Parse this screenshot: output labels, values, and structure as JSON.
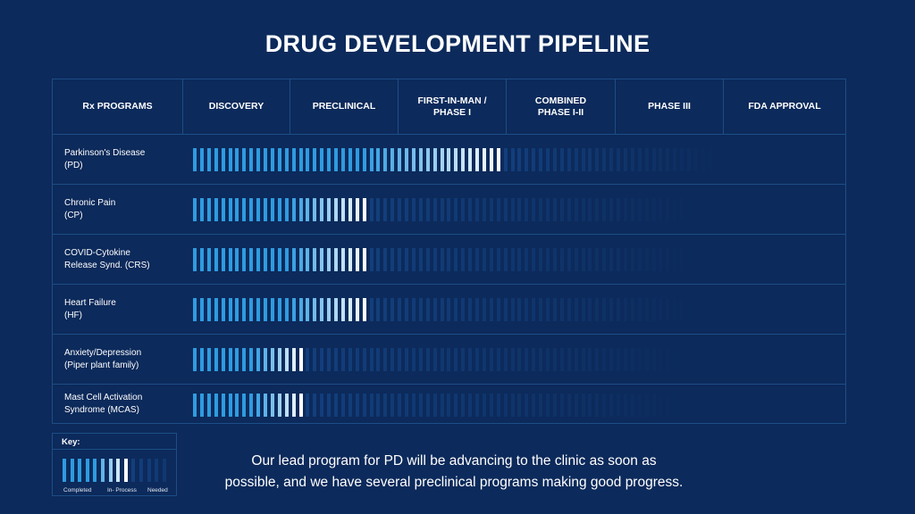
{
  "title": "DRUG DEVELOPMENT PIPELINE",
  "headers": [
    "Rx PROGRAMS",
    "DISCOVERY",
    "PRECLINICAL",
    "FIRST-IN-MAN / PHASE I",
    "COMBINED PHASE I-II",
    "PHASE III",
    "FDA APPROVAL"
  ],
  "header_lines": [
    [
      "Rx PROGRAMS"
    ],
    [
      "DISCOVERY"
    ],
    [
      "PRECLINICAL"
    ],
    [
      "FIRST-IN-MAN /",
      "PHASE I"
    ],
    [
      "COMBINED",
      "PHASE I-II"
    ],
    [
      "PHASE III"
    ],
    [
      "FDA APPROVAL"
    ]
  ],
  "rows": [
    {
      "label_lines": [
        "Parkinson's Disease",
        "(PD)"
      ]
    },
    {
      "label_lines": [
        "Chronic Pain",
        "(CP)"
      ]
    },
    {
      "label_lines": [
        "COVID-Cytokine",
        "Release Synd. (CRS)"
      ]
    },
    {
      "label_lines": [
        "Heart Failure",
        "(HF)"
      ]
    },
    {
      "label_lines": [
        "Anxiety/Depression",
        "(Piper plant family)"
      ]
    },
    {
      "label_lines": [
        "Mast Cell Activation",
        "Syndrome (MCAS)"
      ]
    }
  ],
  "chart_data": {
    "type": "bar",
    "orientation": "horizontal",
    "title": "DRUG DEVELOPMENT PIPELINE",
    "stages": [
      "DISCOVERY",
      "PRECLINICAL",
      "FIRST-IN-MAN / PHASE I",
      "COMBINED PHASE I-II",
      "PHASE III",
      "FDA APPROVAL"
    ],
    "stage_range": [
      0,
      6
    ],
    "categories": [
      "Parkinson's Disease (PD)",
      "Chronic Pain (CP)",
      "COVID-Cytokine Release Synd. (CRS)",
      "Heart Failure (HF)",
      "Anxiety/Depression (Piper plant family)",
      "Mast Cell Activation Syndrome (MCAS)"
    ],
    "values": [
      2.9,
      1.7,
      1.7,
      1.7,
      1.1,
      1.1
    ],
    "grid": true,
    "legend": "bottom-left"
  },
  "key": {
    "title": "Key:",
    "labels": [
      "Completed",
      "In- Process",
      "Needed"
    ]
  },
  "colors": {
    "background": "#0c2a5b",
    "grid": "#1d4d86",
    "completed": "#2f9be0",
    "in_process": "#ffffff",
    "needed": "#123f7c"
  },
  "caption_lines": [
    "Our lead program for PD will be advancing to the clinic as soon as",
    "possible, and we have several preclinical programs making good progress."
  ]
}
